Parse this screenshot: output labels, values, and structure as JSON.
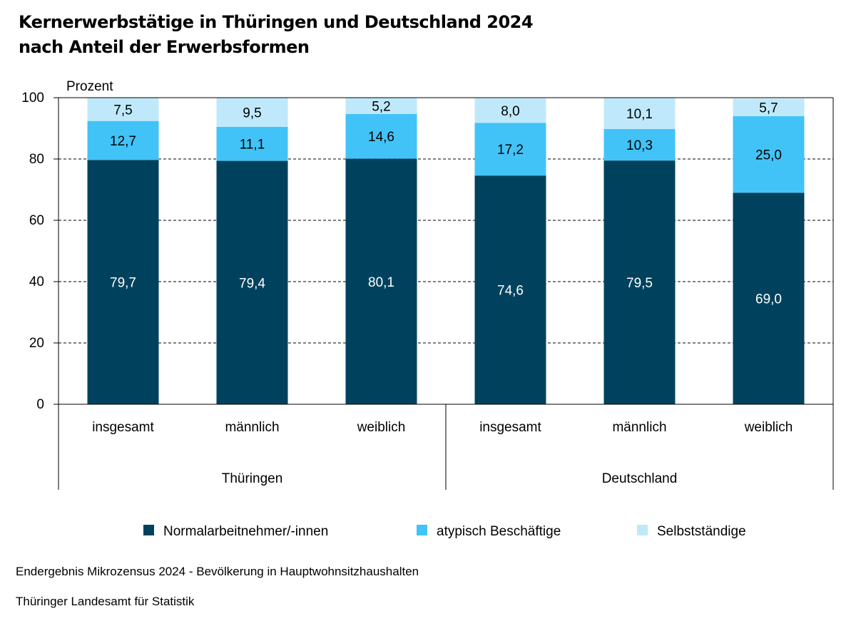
{
  "title_line1": "Kernerwerbstätige in Thüringen und Deutschland 2024",
  "title_line2": "nach Anteil der Erwerbsformen",
  "source_line1": "Endergebnis Mikrozensus 2024 - Bevölkerung in Hauptwohnsitzhaushalten",
  "source_line2": "Thüringer Landesamt für Statistik",
  "colors": {
    "normal": "#00425e",
    "atypisch": "#42c3f7",
    "selbst": "#bfe9fb",
    "label_light": "#ffffff",
    "label_dark": "#000000"
  },
  "chart_data": {
    "type": "bar",
    "stacked": true,
    "ylabel": "Prozent",
    "ylim": [
      0,
      100
    ],
    "yticks": [
      0,
      20,
      40,
      60,
      80,
      100
    ],
    "grid": true,
    "legend_position": "bottom",
    "groups": [
      {
        "name": "Thüringen",
        "categories": [
          "insgesamt",
          "männlich",
          "weiblich"
        ]
      },
      {
        "name": "Deutschland",
        "categories": [
          "insgesamt",
          "männlich",
          "weiblich"
        ]
      }
    ],
    "categories": [
      "insgesamt",
      "männlich",
      "weiblich",
      "insgesamt",
      "männlich",
      "weiblich"
    ],
    "series": [
      {
        "name": "Normalarbeitnehmer/-innen",
        "values": [
          79.7,
          79.4,
          80.1,
          74.6,
          79.5,
          69.0
        ],
        "labels": [
          "79,7",
          "79,4",
          "80,1",
          "74,6",
          "79,5",
          "69,0"
        ]
      },
      {
        "name": "atypisch Beschäftige",
        "values": [
          12.7,
          11.1,
          14.6,
          17.2,
          10.3,
          25.0
        ],
        "labels": [
          "12,7",
          "11,1",
          "14,6",
          "17,2",
          "10,3",
          "25,0"
        ]
      },
      {
        "name": "Selbstständige",
        "values": [
          7.5,
          9.5,
          5.2,
          8.0,
          10.1,
          5.7
        ],
        "labels": [
          "7,5",
          "9,5",
          "5,2",
          "8,0",
          "10,1",
          "5,7"
        ]
      }
    ]
  }
}
